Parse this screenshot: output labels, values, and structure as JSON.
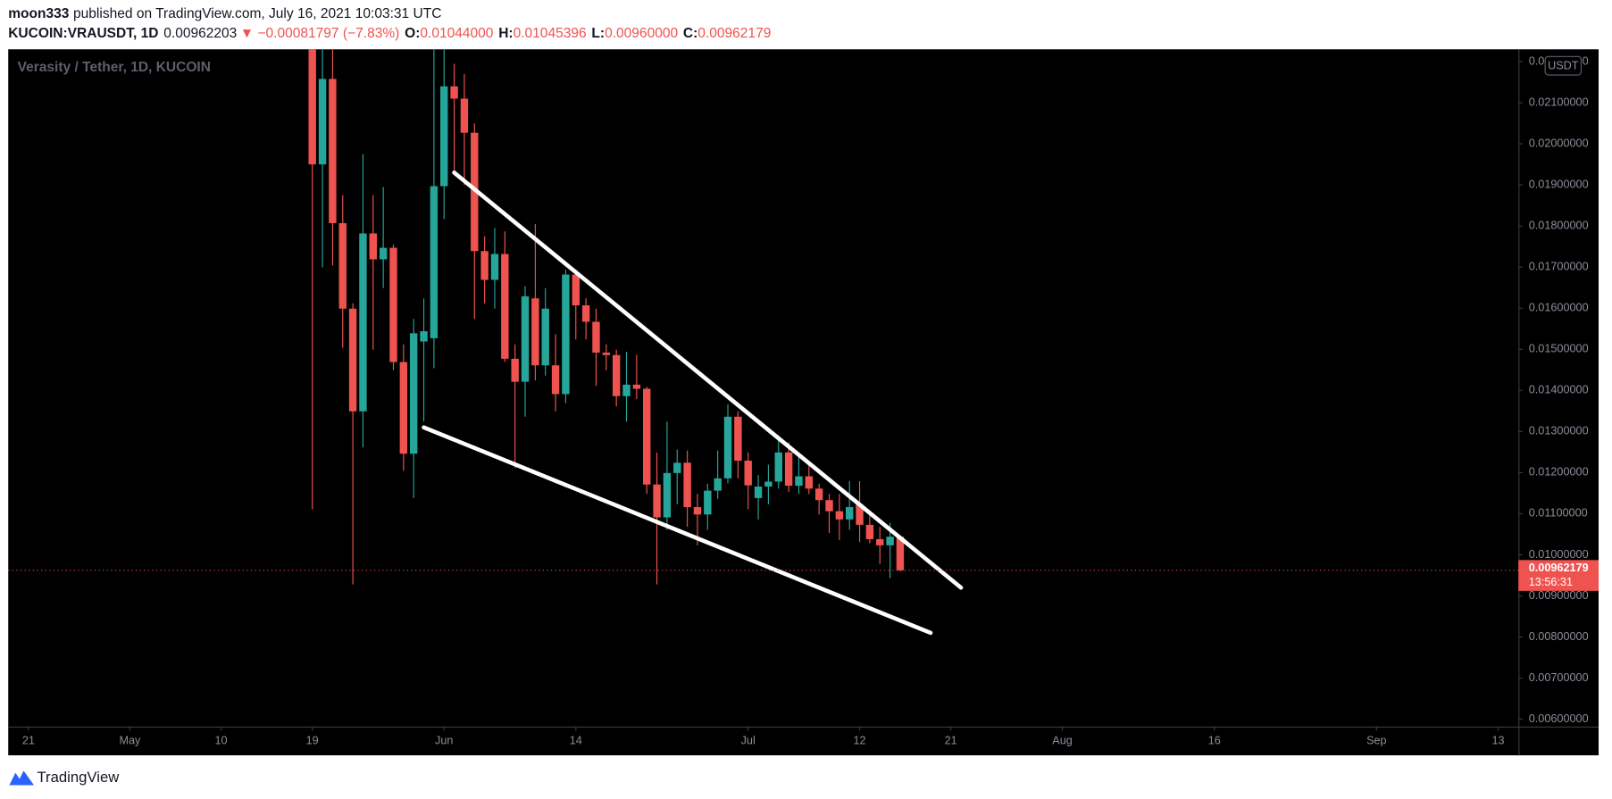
{
  "header": {
    "publisher": "moon333",
    "published": "published on TradingView.com, July 16, 2021 10:03:31 UTC",
    "symbol": "KUCOIN:VRAUSDT, 1D",
    "last": "0.00962203",
    "change": "▼ −0.00081797 (−7.83%)",
    "ohlc": [
      {
        "label": "O:",
        "value": "0.01044000"
      },
      {
        "label": "H:",
        "value": "0.01045396"
      },
      {
        "label": "L:",
        "value": "0.00960000"
      },
      {
        "label": "C:",
        "value": "0.00962179"
      }
    ]
  },
  "footer": {
    "brand": "TradingView"
  },
  "chart_data": {
    "type": "candlestick",
    "title": "Verasity / Tether, 1D, KUCOIN",
    "currency": "USDT",
    "up_color": "#26a69a",
    "down_color": "#ef5350",
    "grid": false,
    "x": [
      "2021-05-19",
      "2021-05-20",
      "2021-05-21",
      "2021-05-22",
      "2021-05-23",
      "2021-05-24",
      "2021-05-25",
      "2021-05-26",
      "2021-05-27",
      "2021-05-28",
      "2021-05-29",
      "2021-05-30",
      "2021-05-31",
      "2021-06-01",
      "2021-06-02",
      "2021-06-03",
      "2021-06-04",
      "2021-06-05",
      "2021-06-06",
      "2021-06-07",
      "2021-06-08",
      "2021-06-09",
      "2021-06-10",
      "2021-06-11",
      "2021-06-12",
      "2021-06-13",
      "2021-06-14",
      "2021-06-15",
      "2021-06-16",
      "2021-06-17",
      "2021-06-18",
      "2021-06-19",
      "2021-06-20",
      "2021-06-21",
      "2021-06-22",
      "2021-06-23",
      "2021-06-24",
      "2021-06-25",
      "2021-06-26",
      "2021-06-27",
      "2021-06-28",
      "2021-06-29",
      "2021-06-30",
      "2021-07-01",
      "2021-07-02",
      "2021-07-03",
      "2021-07-04",
      "2021-07-05",
      "2021-07-06",
      "2021-07-07",
      "2021-07-08",
      "2021-07-09",
      "2021-07-10",
      "2021-07-11",
      "2021-07-12",
      "2021-07-13",
      "2021-07-14",
      "2021-07-15",
      "2021-07-16"
    ],
    "open": [
      0.024,
      0.0195,
      0.02158,
      0.01807,
      0.01599,
      0.01349,
      0.01782,
      0.01719,
      0.01747,
      0.01469,
      0.01246,
      0.01519,
      0.01527,
      0.01897,
      0.0214,
      0.0211,
      0.02027,
      0.01739,
      0.01669,
      0.01732,
      0.01477,
      0.01421,
      0.01624,
      0.01461,
      0.01461,
      0.01391,
      0.01682,
      0.01607,
      0.01567,
      0.01492,
      0.01486,
      0.01386,
      0.01414,
      0.01404,
      0.01171,
      0.01091,
      0.01199,
      0.01224,
      0.01116,
      0.01098,
      0.01156,
      0.01186,
      0.01336,
      0.01229,
      0.01138,
      0.01166,
      0.01178,
      0.01249,
      0.01168,
      0.01191,
      0.01161,
      0.01133,
      0.01106,
      0.01086,
      0.01123,
      0.01073,
      0.01038,
      0.01023,
      0.01044
    ],
    "high": [
      0.026,
      0.025,
      0.0225,
      0.01875,
      0.01612,
      0.01975,
      0.01875,
      0.01895,
      0.01755,
      0.01512,
      0.01574,
      0.01624,
      0.0225,
      0.0228,
      0.02195,
      0.0217,
      0.0205,
      0.01775,
      0.01795,
      0.01787,
      0.01512,
      0.01654,
      0.01805,
      0.01649,
      0.01537,
      0.01694,
      0.01694,
      0.01624,
      0.01599,
      0.01512,
      0.01499,
      0.01494,
      0.01487,
      0.01409,
      0.01249,
      0.01324,
      0.01256,
      0.01254,
      0.01148,
      0.01173,
      0.01254,
      0.01366,
      0.01349,
      0.01249,
      0.01194,
      0.01219,
      0.01291,
      0.01274,
      0.01249,
      0.01229,
      0.01173,
      0.01148,
      0.01148,
      0.01179,
      0.01179,
      0.01098,
      0.01068,
      0.01078,
      0.01045396
    ],
    "low": [
      0.01111,
      0.01699,
      0.01704,
      0.01504,
      0.00928,
      0.01261,
      0.01499,
      0.01649,
      0.01449,
      0.01204,
      0.01138,
      0.01324,
      0.01454,
      0.01817,
      0.01925,
      0.019,
      0.01574,
      0.01612,
      0.01599,
      0.01469,
      0.01211,
      0.01336,
      0.01424,
      0.01436,
      0.01349,
      0.01369,
      0.01524,
      0.01524,
      0.01411,
      0.01449,
      0.01361,
      0.01324,
      0.01379,
      0.01148,
      0.00928,
      0.01061,
      0.01123,
      0.01068,
      0.01023,
      0.01061,
      0.01136,
      0.01174,
      0.01186,
      0.01111,
      0.01086,
      0.01123,
      0.01161,
      0.01153,
      0.01148,
      0.01148,
      0.01098,
      0.01053,
      0.01036,
      0.01061,
      0.01031,
      0.01028,
      0.00978,
      0.00943,
      0.0096
    ],
    "close": [
      0.0195,
      0.02158,
      0.01807,
      0.01599,
      0.01349,
      0.01782,
      0.01719,
      0.01747,
      0.01469,
      0.01246,
      0.01539,
      0.01544,
      0.01897,
      0.0214,
      0.0211,
      0.02027,
      0.01739,
      0.01669,
      0.01732,
      0.01477,
      0.01421,
      0.01629,
      0.01461,
      0.01599,
      0.01391,
      0.01682,
      0.01607,
      0.01567,
      0.01492,
      0.01486,
      0.01386,
      0.01414,
      0.01404,
      0.01171,
      0.01091,
      0.01199,
      0.01224,
      0.01116,
      0.01098,
      0.01156,
      0.01186,
      0.01336,
      0.01229,
      0.01169,
      0.01166,
      0.01178,
      0.01249,
      0.01168,
      0.01191,
      0.01161,
      0.01133,
      0.01106,
      0.01086,
      0.01116,
      0.01073,
      0.01038,
      0.01023,
      0.01044,
      0.00962179
    ],
    "xlim": [
      "2021-04-19",
      "2021-09-15"
    ],
    "xticks": [
      {
        "value": "2021-04-21",
        "label": "21"
      },
      {
        "value": "2021-05-01",
        "label": "May"
      },
      {
        "value": "2021-05-10",
        "label": "10"
      },
      {
        "value": "2021-05-19",
        "label": "19"
      },
      {
        "value": "2021-06-01",
        "label": "Jun"
      },
      {
        "value": "2021-06-14",
        "label": "14"
      },
      {
        "value": "2021-07-01",
        "label": "Jul"
      },
      {
        "value": "2021-07-12",
        "label": "12"
      },
      {
        "value": "2021-07-21",
        "label": "21"
      },
      {
        "value": "2021-08-01",
        "label": "Aug"
      },
      {
        "value": "2021-08-16",
        "label": "16"
      },
      {
        "value": "2021-09-01",
        "label": "Sep"
      },
      {
        "value": "2021-09-13",
        "label": "13"
      }
    ],
    "ylim": [
      0.00582,
      0.0223
    ],
    "yticks": [
      {
        "value": 0.006,
        "label": "0.00600000"
      },
      {
        "value": 0.007,
        "label": "0.00700000"
      },
      {
        "value": 0.008,
        "label": "0.00800000"
      },
      {
        "value": 0.009,
        "label": "0.00900000"
      },
      {
        "value": 0.01,
        "label": "0.01000000"
      },
      {
        "value": 0.011,
        "label": "0.01100000"
      },
      {
        "value": 0.012,
        "label": "0.01200000"
      },
      {
        "value": 0.013,
        "label": "0.01300000"
      },
      {
        "value": 0.014,
        "label": "0.01400000"
      },
      {
        "value": 0.015,
        "label": "0.01500000"
      },
      {
        "value": 0.016,
        "label": "0.01600000"
      },
      {
        "value": 0.017,
        "label": "0.01700000"
      },
      {
        "value": 0.018,
        "label": "0.01800000"
      },
      {
        "value": 0.019,
        "label": "0.01900000"
      },
      {
        "value": 0.02,
        "label": "0.02000000"
      },
      {
        "value": 0.021,
        "label": "0.02100000"
      },
      {
        "value": 0.022,
        "label": "0.02200000"
      }
    ],
    "last_price": {
      "value": 0.00962179,
      "countdown": "13:56:31",
      "color": "#ef5350"
    },
    "trendlines": [
      {
        "color": "#ffffff",
        "points": [
          [
            "2021-06-02",
            0.0193
          ],
          [
            "2021-07-22",
            0.0092
          ]
        ]
      },
      {
        "color": "#ffffff",
        "points": [
          [
            "2021-05-30",
            0.0131
          ],
          [
            "2021-07-19",
            0.0081
          ]
        ]
      }
    ]
  }
}
